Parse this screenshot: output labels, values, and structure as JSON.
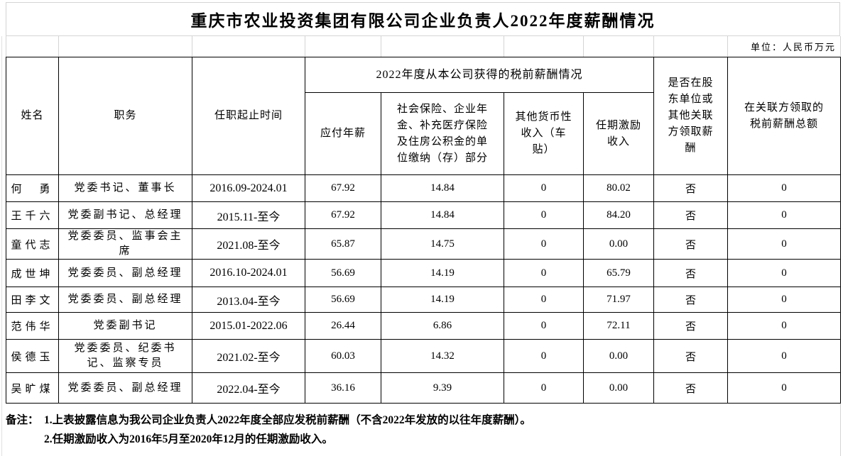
{
  "title": "重庆市农业投资集团有限公司企业负责人2022年度薪酬情况",
  "unit_label": "单位：人民币万元",
  "table": {
    "headers": {
      "name": "姓名",
      "position": "职务",
      "tenure": "任职起止时间",
      "salary_group": "2022年度从本公司获得的税前薪酬情况",
      "annual_salary": "应付年薪",
      "social_insurance": "社会保险、企业年\n金、补充医疗保险\n及住房公积金的单\n位缴纳（存）部分",
      "other_income": "其他货币性\n收入（车\n贴）",
      "tenure_incentive": "任期激励\n收入",
      "shareholder_pay": "是否在股\n东单位或\n其他关联\n方领取薪\n酬",
      "related_party_total": "在关联方领取的\n税前薪酬总额"
    },
    "rows": [
      {
        "name": "何　勇",
        "position": "党委书记、董事长",
        "tenure": "2016.09-2024.01",
        "annual_salary": "67.92",
        "social_insurance": "14.84",
        "other_income": "0",
        "tenure_incentive": "80.02",
        "shareholder_pay": "否",
        "related_party_total": "0"
      },
      {
        "name": "王千六",
        "position": "党委副书记、总经理",
        "tenure": "2015.11-至今",
        "annual_salary": "67.92",
        "social_insurance": "14.84",
        "other_income": "0",
        "tenure_incentive": "84.20",
        "shareholder_pay": "否",
        "related_party_total": "0"
      },
      {
        "name": "童代志",
        "position": "党委委员、监事会主席",
        "tenure": "2021.08-至今",
        "annual_salary": "65.87",
        "social_insurance": "14.75",
        "other_income": "0",
        "tenure_incentive": "0.00",
        "shareholder_pay": "否",
        "related_party_total": "0"
      },
      {
        "name": "成世坤",
        "position": "党委委员、副总经理",
        "tenure": "2016.10-2024.01",
        "annual_salary": "56.69",
        "social_insurance": "14.19",
        "other_income": "0",
        "tenure_incentive": "65.79",
        "shareholder_pay": "否",
        "related_party_total": "0"
      },
      {
        "name": "田李文",
        "position": "党委委员、副总经理",
        "tenure": "2013.04-至今",
        "annual_salary": "56.69",
        "social_insurance": "14.19",
        "other_income": "0",
        "tenure_incentive": "71.97",
        "shareholder_pay": "否",
        "related_party_total": "0"
      },
      {
        "name": "范伟华",
        "position": "党委副书记",
        "tenure": "2015.01-2022.06",
        "annual_salary": "26.44",
        "social_insurance": "6.86",
        "other_income": "0",
        "tenure_incentive": "72.11",
        "shareholder_pay": "否",
        "related_party_total": "0"
      },
      {
        "name": "侯德玉",
        "position": "党委委员、纪委书记、监察专员",
        "tenure": "2021.02-至今",
        "annual_salary": "60.03",
        "social_insurance": "14.32",
        "other_income": "0",
        "tenure_incentive": "0.00",
        "shareholder_pay": "否",
        "related_party_total": "0"
      },
      {
        "name": "吴旷煤",
        "position": "党委委员、副总经理",
        "tenure": "2022.04-至今",
        "annual_salary": "36.16",
        "social_insurance": "9.39",
        "other_income": "0",
        "tenure_incentive": "0.00",
        "shareholder_pay": "否",
        "related_party_total": "0"
      }
    ]
  },
  "notes": {
    "label": "备注：",
    "line1": "1.上表披露信息为我公司企业负责人2022年度全部应发税前薪酬（不含2022年发放的以往年度薪酬）。",
    "line2": "2.任期激励收入为2016年5月至2020年12月的任期激励收入。"
  }
}
